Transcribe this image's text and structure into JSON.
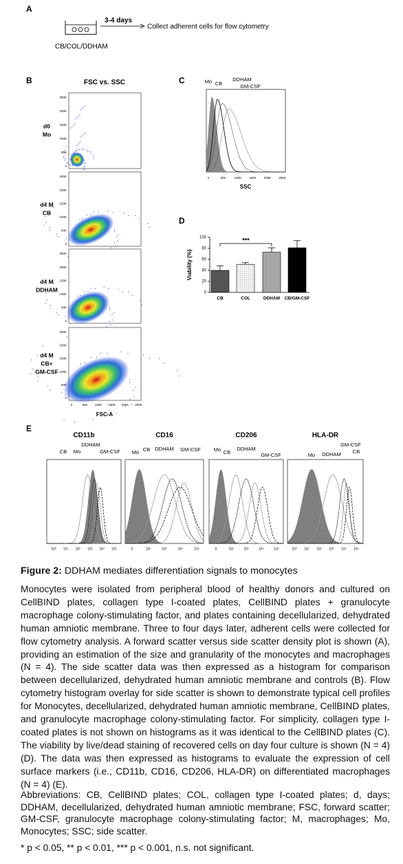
{
  "panel_a": {
    "label": "A",
    "duration": "3-4 days",
    "step": "Collect adherent cells for flow cytometry",
    "conditions": "CB/COL/DDHAM"
  },
  "panel_b": {
    "label": "B",
    "title": "FSC vs. SSC",
    "rows": [
      [
        "d0",
        "Mo"
      ],
      [
        "d4 M",
        "CB"
      ],
      [
        "d4 M",
        "DDHAM"
      ],
      [
        "d4 M",
        "CB+",
        "GM-CSF"
      ]
    ],
    "yticks": [
      "0",
      "50K",
      "100K",
      "150K",
      "200K",
      "250K"
    ],
    "xticks": [
      "0",
      "50K",
      "100K",
      "150K",
      "200K",
      "250K"
    ],
    "xlabel": "FSC-A"
  },
  "panel_c": {
    "label": "C",
    "legend": [
      "Mo",
      "CB",
      "DDHAM",
      "GM-CSF"
    ],
    "xticks": [
      "0",
      "50K",
      "100K",
      "150K",
      "200K",
      "250K"
    ],
    "xlabel": "SSC"
  },
  "chart_data": {
    "type": "bar",
    "panel_label": "D",
    "ylabel": "Viability (%)",
    "categories": [
      "CB",
      "COL",
      "DDHAM",
      "CB/GM-CSF"
    ],
    "values": [
      40,
      51,
      73,
      81
    ],
    "errors": [
      8,
      3,
      8,
      13
    ],
    "colors": [
      "#555555",
      "#e6e6e6",
      "#a6a6a6",
      "#000000"
    ],
    "ylim": [
      0,
      100
    ],
    "yticks": [
      0,
      20,
      40,
      60,
      80,
      100
    ],
    "annotation": "***"
  },
  "panel_e": {
    "label": "E",
    "plots": [
      {
        "title": "CD11b",
        "labels": [
          "CB",
          "Mo",
          "DDHAM",
          "GM-CSF"
        ],
        "xticks": [
          "10⁰",
          "10¹",
          "10²",
          "10³",
          "10⁴",
          "10⁵"
        ]
      },
      {
        "title": "CD16",
        "labels": [
          "Mo",
          "CB",
          "DDHAM",
          "GM-CSF"
        ],
        "xticks": [
          "0",
          "10²",
          "10³",
          "10⁴",
          "10⁵"
        ]
      },
      {
        "title": "CD206",
        "labels": [
          "Mo",
          "CB",
          "DDHAM",
          "GM-CSF"
        ],
        "xticks": [
          "0",
          "10²",
          "10³",
          "10⁴",
          "10⁵"
        ]
      },
      {
        "title": "HLA-DR",
        "labels": [
          "Mo",
          "DDHAM",
          "GM-CSF",
          "CB"
        ],
        "xticks": [
          "10⁰",
          "10¹",
          "10²",
          "10³",
          "10⁴",
          "10⁵"
        ]
      }
    ]
  },
  "caption": {
    "figure_label": "Figure 2:",
    "title": " DDHAM mediates differentiation signals to monocytes",
    "body": "Monocytes were isolated from peripheral blood of healthy donors and cultured on CellBIND plates, collagen type I-coated plates, CellBIND plates + granulocyte macrophage colony-stimulating factor, and plates containing decellularized, dehydrated human amniotic membrane. Three to four days later, adherent cells were collected for flow cytometry analysis. A forward scatter versus side scatter density plot is shown (A), providing an estimation of the size and granularity of the monocytes and macrophages (N = 4). The side scatter data was then expressed as a histogram for comparison between decellularized, dehydrated human amniotic membrane and controls (B). Flow cytometry histogram overlay for side scatter is shown to demonstrate typical cell profiles for Monocytes, decellularized, dehydrated human amniotic membrane, CellBIND plates, and granulocyte macrophage colony-stimulating factor. For simplicity, collagen type I-coated plates is not shown on histograms as it was identical to the CellBIND plates (C). The viability by live/dead staining of recovered cells on day four culture is shown (N = 4) (D). The data was then expressed as histograms to evaluate the expression of cell surface markers (i.e., CD11b, CD16, CD206, HLA-DR) on differentiated macrophages (N = 4) (E).",
    "abbreviations": "Abbreviations: CB, CellBIND plates; COL, collagen type I-coated plates; d, days; DDHAM, decellularized, dehydrated human amniotic membrane; FSC, forward scatter; GM-CSF, granulocyte macrophage colony-stimulating factor; M, macrophages; Mo, Monocytes; SSC; side scatter.",
    "significance": "* p < 0.05, ** p < 0.01, *** p < 0.001, n.s. not significant."
  }
}
